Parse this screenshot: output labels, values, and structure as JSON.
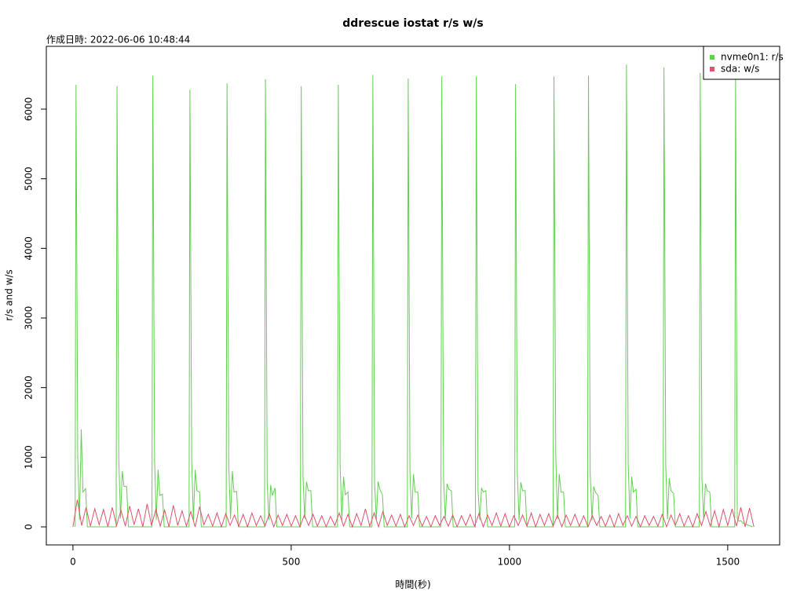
{
  "chart_data": {
    "type": "line",
    "title": "ddrescue iostat r/s w/s",
    "subtitle": "作成日時: 2022-06-06 10:48:44",
    "xlabel": "時間(秒)",
    "ylabel": "r/s and w/s",
    "xlim": [
      -61,
      1619
    ],
    "ylim": [
      -259,
      6902
    ],
    "xticks": [
      0,
      500,
      1000,
      1500
    ],
    "yticks": [
      0,
      1000,
      2000,
      3000,
      4000,
      5000,
      6000
    ],
    "legend": "top-right",
    "series": [
      {
        "name": "nvme0n1: r/s",
        "color": "#61D04F",
        "x": [
          5,
          7,
          11,
          15,
          19,
          23,
          29,
          33,
          99,
          101,
          105,
          109,
          113,
          117,
          123,
          127,
          181,
          183,
          187,
          191,
          195,
          199,
          205,
          209,
          266,
          268,
          272,
          276,
          280,
          284,
          290,
          294,
          351,
          353,
          357,
          361,
          365,
          369,
          375,
          379,
          439,
          441,
          445,
          449,
          453,
          457,
          463,
          467,
          521,
          523,
          527,
          531,
          535,
          539,
          545,
          549,
          606,
          608,
          612,
          616,
          620,
          624,
          630,
          634,
          685,
          687,
          691,
          695,
          699,
          703,
          709,
          713,
          766,
          768,
          772,
          776,
          780,
          784,
          790,
          794,
          843,
          845,
          849,
          853,
          857,
          861,
          867,
          871,
          922,
          924,
          928,
          932,
          936,
          940,
          946,
          950,
          1012,
          1014,
          1018,
          1022,
          1026,
          1030,
          1036,
          1040,
          1100,
          1102,
          1106,
          1110,
          1114,
          1118,
          1124,
          1128,
          1179,
          1181,
          1185,
          1189,
          1193,
          1197,
          1203,
          1207,
          1266,
          1268,
          1272,
          1276,
          1280,
          1284,
          1290,
          1294,
          1352,
          1354,
          1358,
          1362,
          1366,
          1370,
          1376,
          1380,
          1435,
          1437,
          1441,
          1445,
          1449,
          1453,
          1459,
          1463,
          1516,
          1518,
          1522,
          1526,
          1530,
          1534,
          1540,
          1557
        ],
        "values": [
          0,
          6350,
          1000,
          100,
          1400,
          500,
          550,
          0,
          0,
          6330,
          980,
          120,
          800,
          580,
          580,
          0,
          0,
          6480,
          960,
          100,
          820,
          450,
          470,
          0,
          0,
          6280,
          950,
          90,
          820,
          520,
          500,
          0,
          0,
          6370,
          880,
          110,
          800,
          500,
          510,
          0,
          0,
          6430,
          620,
          100,
          600,
          450,
          560,
          0,
          0,
          6330,
          720,
          120,
          650,
          520,
          520,
          0,
          0,
          6350,
          880,
          100,
          720,
          460,
          500,
          0,
          0,
          6490,
          640,
          100,
          650,
          540,
          460,
          0,
          0,
          6440,
          790,
          120,
          760,
          500,
          500,
          0,
          0,
          6470,
          700,
          110,
          620,
          540,
          520,
          0,
          0,
          6470,
          520,
          100,
          560,
          500,
          520,
          0,
          0,
          6360,
          780,
          100,
          640,
          520,
          520,
          0,
          0,
          6470,
          1050,
          110,
          760,
          500,
          500,
          0,
          0,
          6480,
          760,
          100,
          580,
          500,
          450,
          0,
          0,
          6640,
          900,
          120,
          720,
          500,
          540,
          0,
          0,
          6600,
          880,
          110,
          700,
          520,
          480,
          0,
          0,
          6520,
          680,
          120,
          620,
          520,
          500,
          0,
          0,
          6480,
          120,
          80,
          90,
          60,
          40,
          0
        ]
      },
      {
        "name": "sda: w/s",
        "color": "#DF536B",
        "x": [
          0,
          10,
          20,
          30,
          40,
          50,
          60,
          70,
          80,
          90,
          100,
          110,
          120,
          130,
          140,
          150,
          160,
          170,
          180,
          190,
          200,
          210,
          220,
          230,
          240,
          250,
          260,
          270,
          280,
          290,
          300,
          310,
          320,
          330,
          340,
          350,
          360,
          370,
          380,
          390,
          400,
          410,
          420,
          430,
          440,
          450,
          460,
          470,
          480,
          490,
          500,
          510,
          520,
          530,
          540,
          550,
          560,
          570,
          580,
          590,
          600,
          610,
          620,
          630,
          640,
          650,
          660,
          670,
          680,
          690,
          700,
          710,
          720,
          730,
          740,
          750,
          760,
          770,
          780,
          790,
          800,
          810,
          820,
          830,
          840,
          850,
          860,
          870,
          880,
          890,
          900,
          910,
          920,
          930,
          940,
          950,
          960,
          970,
          980,
          990,
          1000,
          1010,
          1020,
          1030,
          1040,
          1050,
          1060,
          1070,
          1080,
          1090,
          1100,
          1110,
          1120,
          1130,
          1140,
          1150,
          1160,
          1170,
          1180,
          1190,
          1200,
          1210,
          1220,
          1230,
          1240,
          1250,
          1260,
          1270,
          1280,
          1290,
          1300,
          1310,
          1320,
          1330,
          1340,
          1350,
          1360,
          1370,
          1380,
          1390,
          1400,
          1410,
          1420,
          1430,
          1440,
          1450,
          1460,
          1470,
          1480,
          1490,
          1500,
          1510,
          1520,
          1530,
          1540,
          1550,
          1560
        ],
        "values": [
          0,
          390,
          20,
          280,
          10,
          260,
          30,
          250,
          0,
          280,
          20,
          240,
          10,
          300,
          30,
          260,
          0,
          330,
          20,
          250,
          10,
          240,
          0,
          310,
          20,
          230,
          10,
          220,
          0,
          290,
          30,
          180,
          10,
          200,
          0,
          190,
          20,
          170,
          10,
          180,
          0,
          200,
          20,
          160,
          10,
          190,
          0,
          170,
          20,
          180,
          10,
          160,
          0,
          170,
          20,
          180,
          10,
          160,
          0,
          150,
          20,
          200,
          10,
          180,
          0,
          190,
          20,
          260,
          10,
          200,
          0,
          220,
          20,
          170,
          10,
          180,
          0,
          160,
          20,
          170,
          10,
          150,
          0,
          160,
          20,
          150,
          10,
          170,
          0,
          160,
          20,
          180,
          10,
          190,
          0,
          170,
          20,
          200,
          10,
          190,
          0,
          160,
          20,
          170,
          10,
          200,
          0,
          180,
          20,
          190,
          10,
          170,
          0,
          170,
          20,
          180,
          10,
          160,
          0,
          160,
          20,
          150,
          10,
          170,
          0,
          190,
          20,
          160,
          10,
          150,
          0,
          160,
          20,
          150,
          10,
          180,
          0,
          170,
          20,
          190,
          10,
          160,
          0,
          190,
          20,
          220,
          10,
          230,
          0,
          250,
          20,
          260,
          10,
          280,
          0,
          270,
          0
        ]
      }
    ]
  }
}
